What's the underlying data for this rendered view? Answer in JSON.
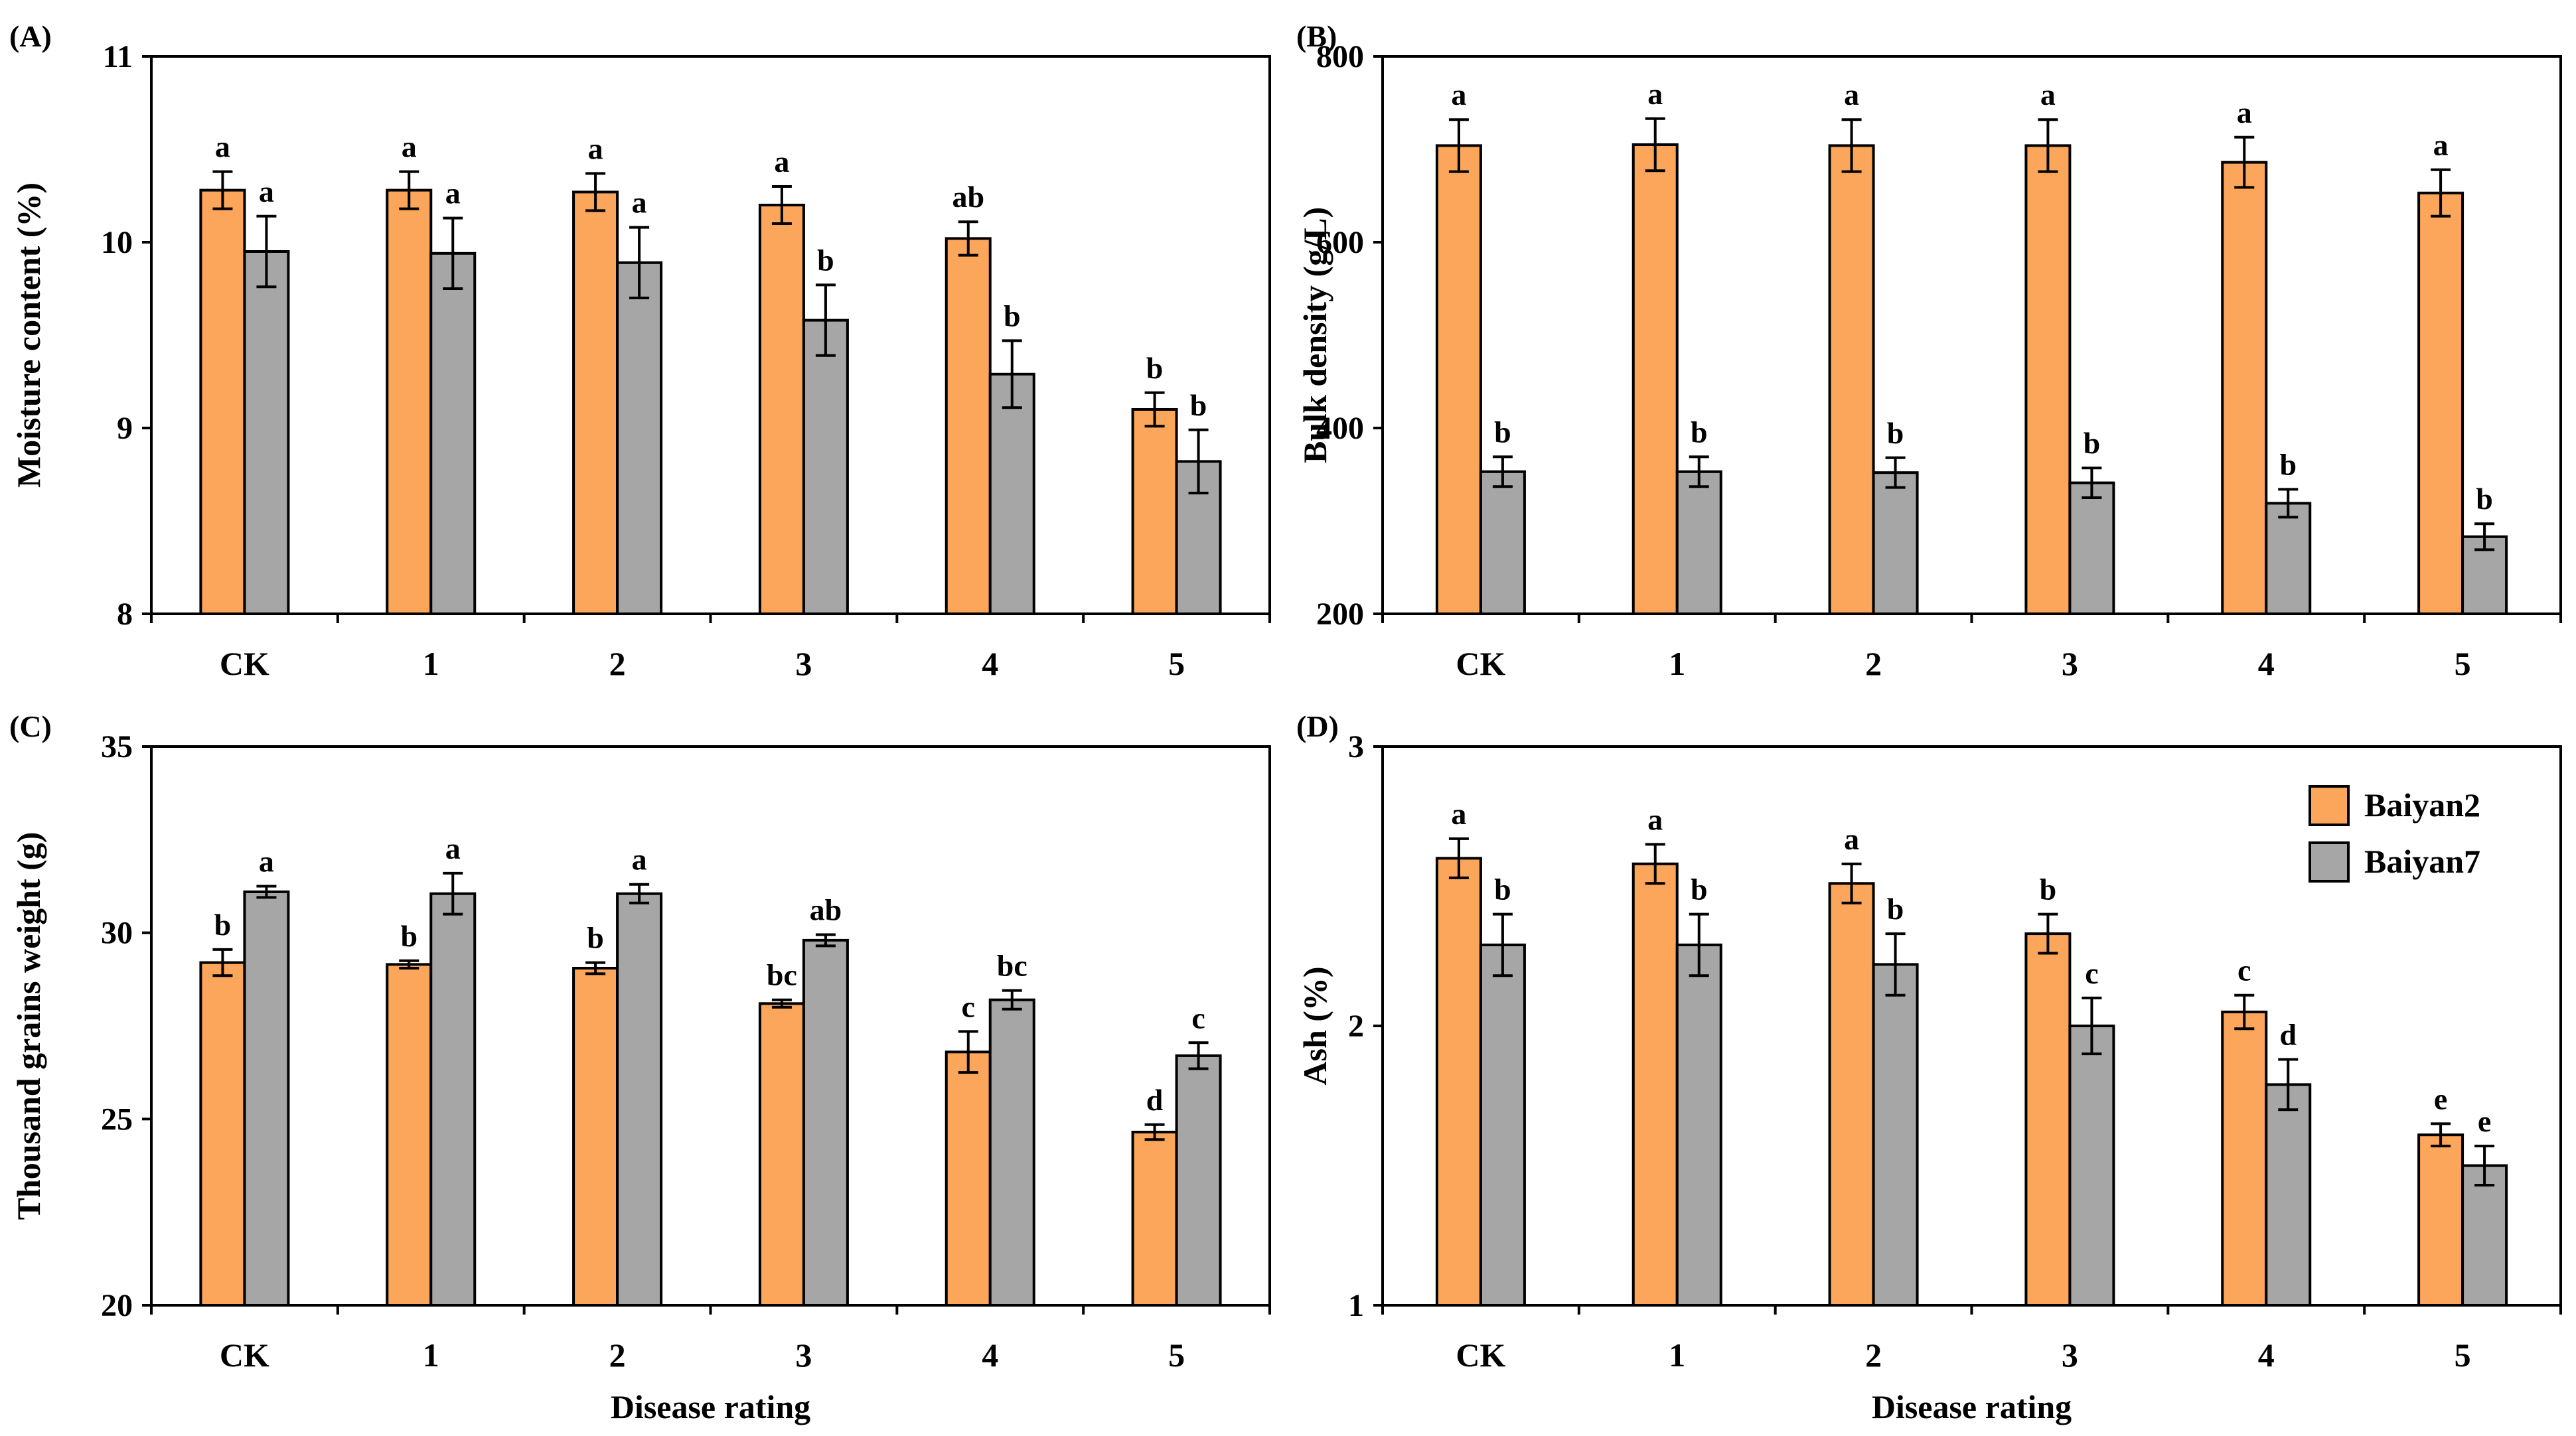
{
  "colors": {
    "Baiyan2": "#fba65a",
    "Baiyan7": "#a6a6a6",
    "stroke": "#000000"
  },
  "legend": {
    "items": [
      "Baiyan2",
      "Baiyan7"
    ],
    "placement": "top-right of panel D"
  },
  "chart_data": [
    {
      "type": "bar",
      "panel_label": "(A)",
      "categories": [
        "CK",
        "1",
        "2",
        "3",
        "4",
        "5"
      ],
      "ylabel": "Moisture content (%)",
      "xlabel": "",
      "ylim": [
        8,
        11
      ],
      "yticks": [
        8,
        9,
        10,
        11
      ],
      "series": [
        {
          "name": "Baiyan2",
          "values": [
            10.28,
            10.28,
            10.27,
            10.2,
            10.02,
            9.1
          ],
          "errors": [
            0.1,
            0.1,
            0.1,
            0.1,
            0.09,
            0.09
          ],
          "letters": [
            "a",
            "a",
            "a",
            "a",
            "ab",
            "b"
          ]
        },
        {
          "name": "Baiyan7",
          "values": [
            9.95,
            9.94,
            9.89,
            9.58,
            9.29,
            8.82
          ],
          "errors": [
            0.19,
            0.19,
            0.19,
            0.19,
            0.18,
            0.17
          ],
          "letters": [
            "a",
            "a",
            "a",
            "b",
            "b",
            "b"
          ]
        }
      ]
    },
    {
      "type": "bar",
      "panel_label": "(B)",
      "categories": [
        "CK",
        "1",
        "2",
        "3",
        "4",
        "5"
      ],
      "ylabel": "Bulk density (g/L)",
      "xlabel": "",
      "ylim": [
        200,
        800
      ],
      "yticks": [
        200,
        400,
        600,
        800
      ],
      "series": [
        {
          "name": "Baiyan2",
          "values": [
            704,
            705,
            704,
            704,
            686,
            653
          ],
          "errors": [
            28,
            28,
            28,
            28,
            27,
            25
          ],
          "letters": [
            "a",
            "a",
            "a",
            "a",
            "a",
            "a"
          ]
        },
        {
          "name": "Baiyan7",
          "values": [
            353,
            353,
            352,
            341,
            319,
            283
          ],
          "errors": [
            16,
            16,
            16,
            16,
            15,
            14
          ],
          "letters": [
            "b",
            "b",
            "b",
            "b",
            "b",
            "b"
          ]
        }
      ]
    },
    {
      "type": "bar",
      "panel_label": "(C)",
      "categories": [
        "CK",
        "1",
        "2",
        "3",
        "4",
        "5"
      ],
      "ylabel": "Thousand grains weight (g)",
      "xlabel": "Disease rating",
      "ylim": [
        20,
        35
      ],
      "yticks": [
        20,
        25,
        30,
        35
      ],
      "series": [
        {
          "name": "Baiyan2",
          "values": [
            29.2,
            29.15,
            29.05,
            28.1,
            26.8,
            24.65
          ],
          "errors": [
            0.35,
            0.1,
            0.15,
            0.1,
            0.55,
            0.2
          ],
          "letters": [
            "b",
            "b",
            "b",
            "bc",
            "c",
            "d"
          ]
        },
        {
          "name": "Baiyan7",
          "values": [
            31.1,
            31.05,
            31.05,
            29.8,
            28.2,
            26.7
          ],
          "errors": [
            0.15,
            0.55,
            0.25,
            0.15,
            0.25,
            0.35
          ],
          "letters": [
            "a",
            "a",
            "a",
            "ab",
            "bc",
            "c"
          ]
        }
      ]
    },
    {
      "type": "bar",
      "panel_label": "(D)",
      "categories": [
        "CK",
        "1",
        "2",
        "3",
        "4",
        "5"
      ],
      "ylabel": "Ash (%)",
      "xlabel": "Disease rating",
      "ylim": [
        1,
        3
      ],
      "yticks": [
        1,
        2,
        3
      ],
      "series": [
        {
          "name": "Baiyan2",
          "values": [
            2.6,
            2.58,
            2.51,
            2.33,
            2.05,
            1.61
          ],
          "errors": [
            0.07,
            0.07,
            0.07,
            0.07,
            0.06,
            0.04
          ],
          "letters": [
            "a",
            "a",
            "a",
            "b",
            "c",
            "e"
          ]
        },
        {
          "name": "Baiyan7",
          "values": [
            2.29,
            2.29,
            2.22,
            2.0,
            1.79,
            1.5
          ],
          "errors": [
            0.11,
            0.11,
            0.11,
            0.1,
            0.09,
            0.07
          ],
          "letters": [
            "b",
            "b",
            "b",
            "c",
            "d",
            "e"
          ]
        }
      ]
    }
  ]
}
